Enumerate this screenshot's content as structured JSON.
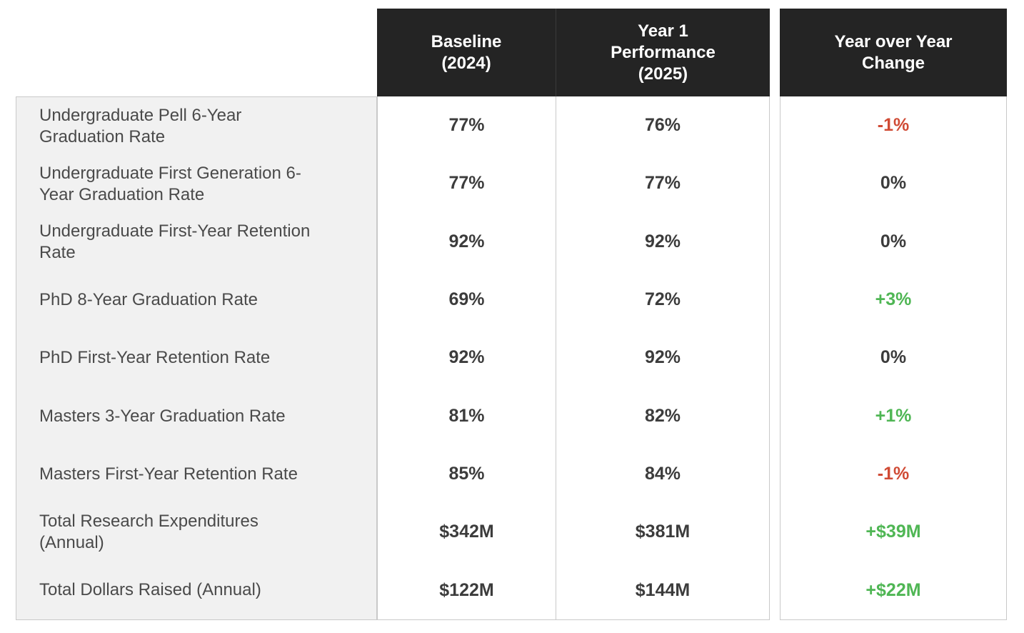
{
  "colors": {
    "positive": "#4fb654",
    "negative": "#d04b35",
    "neutral": "#3c3c3c",
    "header_bg": "#242424",
    "header_text": "#ffffff",
    "label_panel_bg": "#f1f1f1",
    "border": "#c9c9c9",
    "metric_text": "#4a4a4a",
    "value_text": "#3c3c3c"
  },
  "chart_data": {
    "type": "table",
    "title": "",
    "columns": [
      "Baseline\n(2024)",
      "Year 1\nPerformance\n(2025)",
      "Year over Year\nChange"
    ],
    "rows": [
      {
        "metric": "Undergraduate Pell 6-Year\nGraduation Rate",
        "baseline": "77%",
        "year1": "76%",
        "change": "-1%",
        "trend": "negative"
      },
      {
        "metric": "Undergraduate First Generation 6-\nYear Graduation Rate",
        "baseline": "77%",
        "year1": "77%",
        "change": "0%",
        "trend": "neutral"
      },
      {
        "metric": "Undergraduate First-Year Retention\nRate",
        "baseline": "92%",
        "year1": "92%",
        "change": "0%",
        "trend": "neutral"
      },
      {
        "metric": "PhD 8-Year Graduation Rate",
        "baseline": "69%",
        "year1": "72%",
        "change": "+3%",
        "trend": "positive"
      },
      {
        "metric": "PhD First-Year Retention Rate",
        "baseline": "92%",
        "year1": "92%",
        "change": "0%",
        "trend": "neutral"
      },
      {
        "metric": "Masters 3-Year Graduation Rate",
        "baseline": "81%",
        "year1": "82%",
        "change": "+1%",
        "trend": "positive"
      },
      {
        "metric": "Masters First-Year Retention Rate",
        "baseline": "85%",
        "year1": "84%",
        "change": "-1%",
        "trend": "negative"
      },
      {
        "metric": "Total Research Expenditures\n(Annual)",
        "baseline": "$342M",
        "year1": "$381M",
        "change": "+$39M",
        "trend": "positive"
      },
      {
        "metric": "Total Dollars Raised (Annual)",
        "baseline": "$122M",
        "year1": "$144M",
        "change": "+$22M",
        "trend": "positive"
      }
    ]
  }
}
